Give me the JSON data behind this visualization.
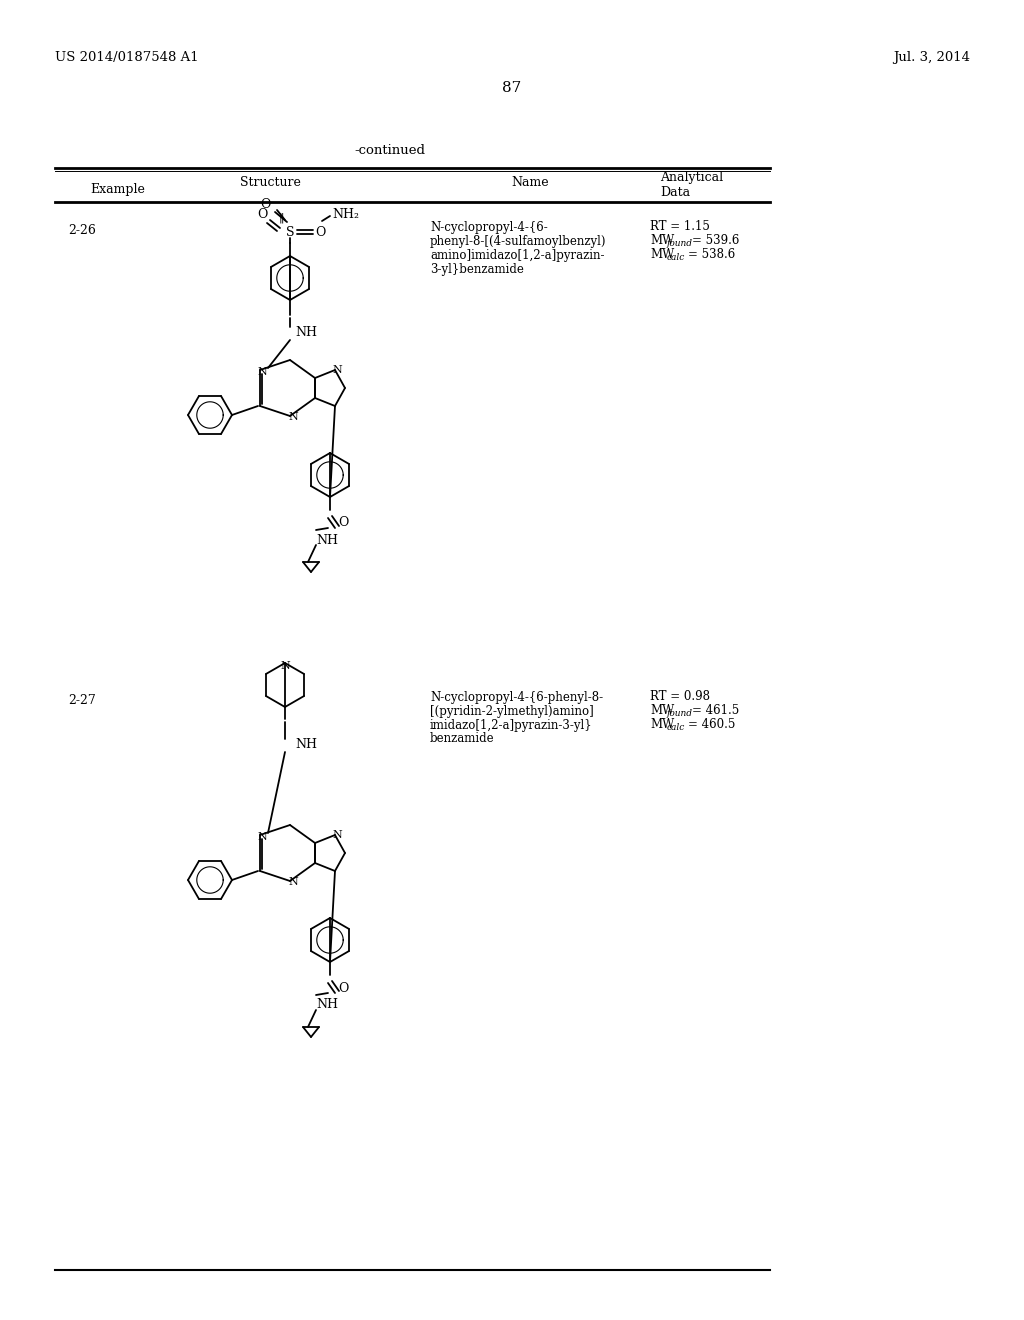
{
  "background_color": "#ffffff",
  "page_header_left": "US 2014/0187548 A1",
  "page_header_right": "Jul. 3, 2014",
  "page_number": "87",
  "continued_text": "-continued",
  "table_headers": [
    "Example",
    "Structure",
    "Name",
    "Analytical\nData"
  ],
  "row1_example": "2-26",
  "row1_name_line1": "N-cyclopropyl-4-{6-",
  "row1_name_line2": "phenyl-8-[(4-sulfamoylbenzyl)",
  "row1_name_line3": "amino]imidazo[1,2-a]pyrazin-",
  "row1_name_line4": "3-yl}benzamide",
  "row1_rt": "RT = 1.15",
  "row1_mw_found": "MW",
  "row1_mw_found_sub": "found",
  "row1_mw_found_val": " = 539.6",
  "row1_mw_calc": "MW",
  "row1_mw_calc_sub": "calc",
  "row1_mw_calc_val": " = 538.6",
  "row2_example": "2-27",
  "row2_name_line1": "N-cyclopropyl-4-{6-phenyl-8-",
  "row2_name_line2": "[(pyridin-2-ylmethyl)amino]",
  "row2_name_line3": "imidazo[1,2-a]pyrazin-3-yl}",
  "row2_name_line4": "benzamide",
  "row2_rt": "RT = 0.98",
  "row2_mw_found": "MW",
  "row2_mw_found_sub": "found",
  "row2_mw_found_val": " = 461.5",
  "row2_mw_calc": "MW",
  "row2_mw_calc_sub": "calc",
  "row2_mw_calc_val": " = 460.5"
}
